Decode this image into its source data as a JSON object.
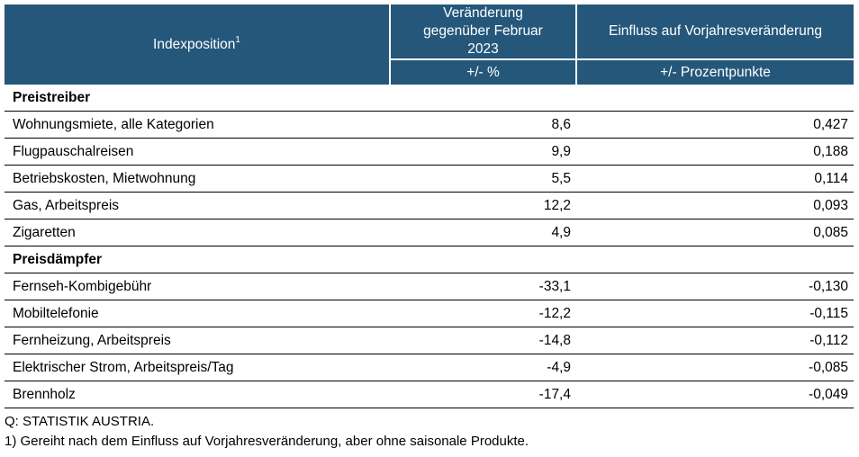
{
  "header": {
    "col1": "Indexposition",
    "col1_sup": "1",
    "col2_top": "Veränderung gegenüber Februar 2023",
    "col2_unit": "+/- %",
    "col3_top": "Einfluss auf Vorjahresveränderung",
    "col3_unit": "+/- Prozentpunkte"
  },
  "sections": [
    {
      "title": "Preistreiber",
      "rows": [
        {
          "label": "Wohnungsmiete, alle Kategorien",
          "change": "8,6",
          "influence": "0,427"
        },
        {
          "label": "Flugpauschalreisen",
          "change": "9,9",
          "influence": "0,188"
        },
        {
          "label": "Betriebskosten, Mietwohnung",
          "change": "5,5",
          "influence": "0,114"
        },
        {
          "label": "Gas, Arbeitspreis",
          "change": "12,2",
          "influence": "0,093"
        },
        {
          "label": "Zigaretten",
          "change": "4,9",
          "influence": "0,085"
        }
      ]
    },
    {
      "title": "Preisdämpfer",
      "rows": [
        {
          "label": "Fernseh-Kombigebühr",
          "change": "-33,1",
          "influence": "-0,130"
        },
        {
          "label": "Mobiltelefonie",
          "change": "-12,2",
          "influence": "-0,115"
        },
        {
          "label": "Fernheizung, Arbeitspreis",
          "change": "-14,8",
          "influence": "-0,112"
        },
        {
          "label": "Elektrischer Strom, Arbeitspreis/Tag",
          "change": "-4,9",
          "influence": "-0,085"
        },
        {
          "label": "Brennholz",
          "change": "-17,4",
          "influence": "-0,049"
        }
      ]
    }
  ],
  "footnotes": {
    "source": "Q: STATISTIK AUSTRIA.",
    "note1": "1) Gereiht nach dem Einfluss auf Vorjahresveränderung, aber ohne saisonale Produkte."
  },
  "colors": {
    "header_bg": "#25577a",
    "header_text": "#ffffff"
  }
}
